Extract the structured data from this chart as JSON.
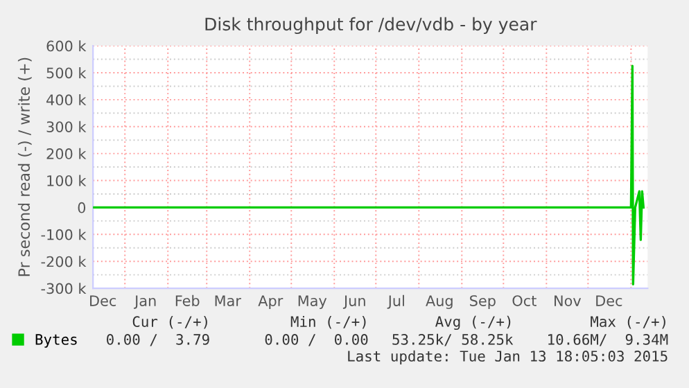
{
  "chart_data": {
    "type": "line",
    "title": "Disk throughput for /dev/vdb - by year",
    "ylabel": "Pr second read (-) / write (+)",
    "x": [
      "2013-12-09",
      "2015-01-01",
      "2015-01-02",
      "2015-01-02T12:00",
      "2015-01-04",
      "2015-01-07",
      "2015-01-08",
      "2015-01-09",
      "2015-01-10"
    ],
    "series": [
      {
        "name": "Bytes",
        "color": "#00cc00",
        "values": [
          0,
          0,
          525000,
          -285000,
          0,
          60000,
          -120000,
          60000,
          0
        ]
      }
    ],
    "xlim": [
      "2013-12-09",
      "2015-01-13"
    ],
    "xticks": [
      {
        "value": "2013-12-16",
        "label": "Dec"
      },
      {
        "value": "2014-01-01",
        "label": null
      },
      {
        "value": "2014-01-16",
        "label": "Jan"
      },
      {
        "value": "2014-02-01",
        "label": null
      },
      {
        "value": "2014-02-15",
        "label": "Feb"
      },
      {
        "value": "2014-03-01",
        "label": null
      },
      {
        "value": "2014-03-16",
        "label": "Mar"
      },
      {
        "value": "2014-04-01",
        "label": null
      },
      {
        "value": "2014-04-16",
        "label": "Apr"
      },
      {
        "value": "2014-05-01",
        "label": null
      },
      {
        "value": "2014-05-16",
        "label": "May"
      },
      {
        "value": "2014-06-01",
        "label": null
      },
      {
        "value": "2014-06-16",
        "label": "Jun"
      },
      {
        "value": "2014-07-01",
        "label": null
      },
      {
        "value": "2014-07-16",
        "label": "Jul"
      },
      {
        "value": "2014-08-01",
        "label": null
      },
      {
        "value": "2014-08-16",
        "label": "Aug"
      },
      {
        "value": "2014-09-01",
        "label": null
      },
      {
        "value": "2014-09-16",
        "label": "Sep"
      },
      {
        "value": "2014-10-01",
        "label": null
      },
      {
        "value": "2014-10-16",
        "label": "Oct"
      },
      {
        "value": "2014-11-01",
        "label": null
      },
      {
        "value": "2014-11-16",
        "label": "Nov"
      },
      {
        "value": "2014-12-01",
        "label": null
      },
      {
        "value": "2014-12-16",
        "label": "Dec"
      },
      {
        "value": "2015-01-01",
        "label": null
      }
    ],
    "ylim": [
      -300000,
      600000
    ],
    "yticks": [
      {
        "value": -300000,
        "label": "-300 k"
      },
      {
        "value": -200000,
        "label": "-200 k"
      },
      {
        "value": -100000,
        "label": "-100 k"
      },
      0,
      {
        "value": 100000,
        "label": "100 k"
      },
      {
        "value": 200000,
        "label": "200 k"
      },
      {
        "value": 300000,
        "label": "300 k"
      },
      {
        "value": 400000,
        "label": "400 k"
      },
      {
        "value": 500000,
        "label": "500 k"
      },
      {
        "value": 600000,
        "label": "600 k"
      }
    ],
    "grid": true,
    "legend": "bottom left",
    "marker": "none",
    "line_style": "solid",
    "annotations": [
      "Cur (-/+)",
      "Min (-/+)",
      "Avg (-/+)",
      "Max (-/+)",
      "0.00 /  3.79",
      "0.00 /  0.00",
      "53.25k/ 58.25k",
      "10.66M/  9.34M",
      "Last update: Tue Jan 13 18:05:03 2015"
    ]
  }
}
